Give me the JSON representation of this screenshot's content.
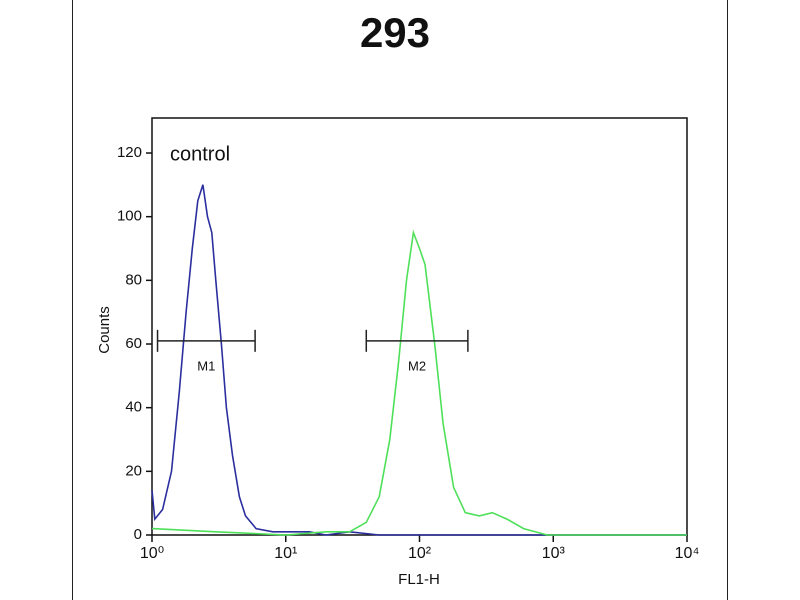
{
  "chart_data": {
    "type": "histogram-overlay",
    "title": "293",
    "xlabel": "FL1-H",
    "ylabel": "Counts",
    "xscale": "log",
    "xlim": [
      1,
      10000
    ],
    "ylim": [
      0,
      131
    ],
    "xticks": [
      {
        "value": 1,
        "label": "10⁰"
      },
      {
        "value": 10,
        "label": "10¹"
      },
      {
        "value": 100,
        "label": "10²"
      },
      {
        "value": 1000,
        "label": "10³"
      },
      {
        "value": 10000,
        "label": "10⁴"
      }
    ],
    "yticks": [
      0,
      20,
      40,
      60,
      80,
      100,
      120
    ],
    "series": [
      {
        "name": "control",
        "color": "#2b2f9e",
        "x": [
          1,
          1.05,
          1.2,
          1.4,
          1.6,
          1.8,
          2.0,
          2.2,
          2.4,
          2.6,
          2.8,
          3.0,
          3.3,
          3.6,
          4.0,
          4.5,
          5.0,
          6,
          8,
          10,
          15,
          20,
          30,
          50,
          100,
          200,
          1000,
          10000
        ],
        "values": [
          14,
          5,
          8,
          20,
          45,
          70,
          90,
          105,
          110,
          100,
          95,
          80,
          60,
          40,
          25,
          12,
          6,
          2,
          1,
          1,
          1,
          0,
          1,
          0,
          0,
          0,
          0,
          0
        ]
      },
      {
        "color": "#4fe05a",
        "x": [
          1,
          3,
          10,
          20,
          30,
          40,
          50,
          60,
          70,
          80,
          90,
          100,
          110,
          130,
          150,
          180,
          220,
          280,
          350,
          450,
          600,
          900,
          10000
        ],
        "values": [
          2,
          1,
          0,
          1,
          1,
          4,
          12,
          30,
          55,
          80,
          95,
          90,
          85,
          60,
          35,
          15,
          7,
          6,
          7,
          5,
          2,
          0,
          0
        ]
      }
    ],
    "gates": [
      {
        "label": "M1",
        "range": [
          1.1,
          5.9
        ],
        "y": 61
      },
      {
        "label": "M2",
        "range": [
          40,
          230
        ],
        "y": 61
      }
    ]
  }
}
